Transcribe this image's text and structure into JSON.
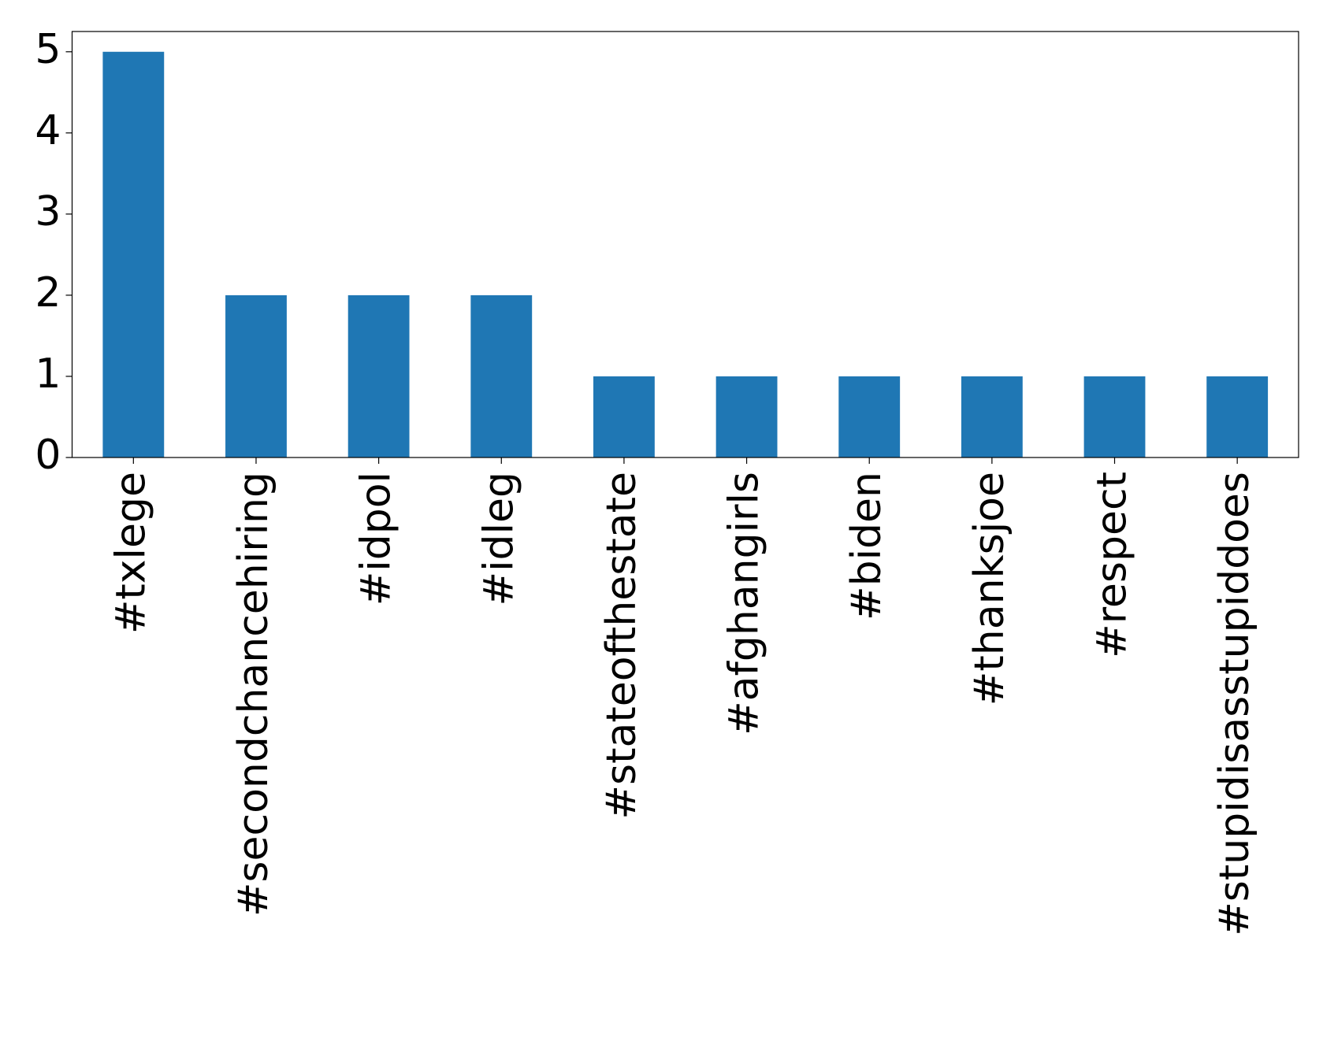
{
  "chart_data": {
    "type": "bar",
    "categories": [
      "#txlege",
      "#secondchancehiring",
      "#idpol",
      "#idleg",
      "#stateofthestate",
      "#afghangirls",
      "#biden",
      "#thanksjoe",
      "#respect",
      "#stupidisasstupiddoes"
    ],
    "values": [
      5,
      2,
      2,
      2,
      1,
      1,
      1,
      1,
      1,
      1
    ],
    "color": "#1f77b4",
    "ylim": [
      0,
      5.25
    ],
    "yticks": [
      0,
      1,
      2,
      3,
      4,
      5
    ],
    "grid": false
  }
}
